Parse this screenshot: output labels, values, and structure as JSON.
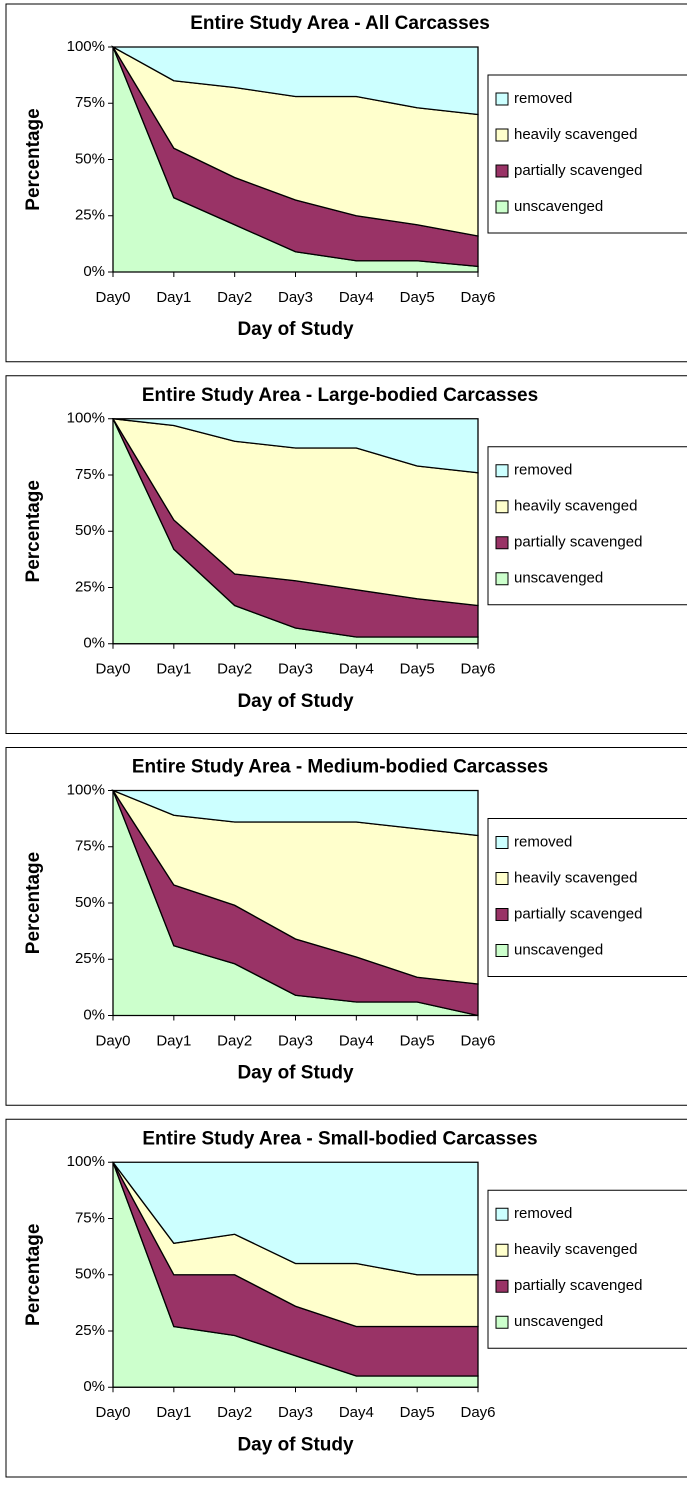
{
  "chart_data": [
    {
      "type": "area",
      "title": "Entire Study Area - All Carcasses",
      "xlabel": "Day of Study",
      "ylabel": "Percentage",
      "categories": [
        "Day0",
        "Day1",
        "Day2",
        "Day3",
        "Day4",
        "Day5",
        "Day6"
      ],
      "series": [
        {
          "name": "unscavenged",
          "color": "#ccffcc",
          "values": [
            100,
            33,
            21,
            9,
            5,
            5,
            2.5
          ]
        },
        {
          "name": "partially scavenged",
          "color": "#993366",
          "values": [
            0,
            22,
            21,
            23,
            20,
            16,
            13.5
          ]
        },
        {
          "name": "heavily scavenged",
          "color": "#ffffcc",
          "values": [
            0,
            30,
            40,
            46,
            53,
            52,
            54
          ]
        },
        {
          "name": "removed",
          "color": "#ccffff",
          "values": [
            0,
            15,
            18,
            22,
            22,
            27,
            30
          ]
        }
      ],
      "ylim": [
        0,
        100
      ],
      "yticks": [
        {
          "value": 0,
          "label": "0%"
        },
        {
          "value": 25,
          "label": "25%"
        },
        {
          "value": 50,
          "label": "50%"
        },
        {
          "value": 75,
          "label": "75%"
        },
        {
          "value": 100,
          "label": "100%"
        }
      ]
    },
    {
      "type": "area",
      "title": "Entire Study Area - Large-bodied Carcasses",
      "xlabel": "Day of Study",
      "ylabel": "Percentage",
      "categories": [
        "Day0",
        "Day1",
        "Day2",
        "Day3",
        "Day4",
        "Day5",
        "Day6"
      ],
      "series": [
        {
          "name": "unscavenged",
          "color": "#ccffcc",
          "values": [
            100,
            42,
            17,
            7,
            3,
            3,
            3
          ]
        },
        {
          "name": "partially scavenged",
          "color": "#993366",
          "values": [
            0,
            13,
            14,
            21,
            21,
            17,
            14
          ]
        },
        {
          "name": "heavily scavenged",
          "color": "#ffffcc",
          "values": [
            0,
            42,
            59,
            59,
            63,
            59,
            59
          ]
        },
        {
          "name": "removed",
          "color": "#ccffff",
          "values": [
            0,
            3,
            10,
            13,
            13,
            21,
            24
          ]
        }
      ],
      "ylim": [
        0,
        100
      ],
      "yticks": [
        {
          "value": 0,
          "label": "0%"
        },
        {
          "value": 25,
          "label": "25%"
        },
        {
          "value": 50,
          "label": "50%"
        },
        {
          "value": 75,
          "label": "75%"
        },
        {
          "value": 100,
          "label": "100%"
        }
      ]
    },
    {
      "type": "area",
      "title": "Entire Study Area - Medium-bodied Carcasses",
      "xlabel": "Day of Study",
      "ylabel": "Percentage",
      "categories": [
        "Day0",
        "Day1",
        "Day2",
        "Day3",
        "Day4",
        "Day5",
        "Day6"
      ],
      "series": [
        {
          "name": "unscavenged",
          "color": "#ccffcc",
          "values": [
            100,
            31,
            23,
            9,
            6,
            6,
            0
          ]
        },
        {
          "name": "partially scavenged",
          "color": "#993366",
          "values": [
            0,
            27,
            26,
            25,
            20,
            11,
            14
          ]
        },
        {
          "name": "heavily scavenged",
          "color": "#ffffcc",
          "values": [
            0,
            31,
            37,
            52,
            60,
            66,
            66
          ]
        },
        {
          "name": "removed",
          "color": "#ccffff",
          "values": [
            0,
            11,
            14,
            14,
            14,
            17,
            20
          ]
        }
      ],
      "ylim": [
        0,
        100
      ],
      "yticks": [
        {
          "value": 0,
          "label": "0%"
        },
        {
          "value": 25,
          "label": "25%"
        },
        {
          "value": 50,
          "label": "50%"
        },
        {
          "value": 75,
          "label": "75%"
        },
        {
          "value": 100,
          "label": "100%"
        }
      ]
    },
    {
      "type": "area",
      "title": "Entire Study Area - Small-bodied Carcasses",
      "xlabel": "Day of Study",
      "ylabel": "Percentage",
      "categories": [
        "Day0",
        "Day1",
        "Day2",
        "Day3",
        "Day4",
        "Day5",
        "Day6"
      ],
      "series": [
        {
          "name": "unscavenged",
          "color": "#ccffcc",
          "values": [
            100,
            27,
            23,
            14,
            5,
            5,
            5
          ]
        },
        {
          "name": "partially scavenged",
          "color": "#993366",
          "values": [
            0,
            23,
            27,
            22,
            22,
            22,
            22
          ]
        },
        {
          "name": "heavily scavenged",
          "color": "#ffffcc",
          "values": [
            0,
            14,
            18,
            19,
            28,
            23,
            23
          ]
        },
        {
          "name": "removed",
          "color": "#ccffff",
          "values": [
            0,
            36,
            32,
            45,
            45,
            50,
            50
          ]
        }
      ],
      "ylim": [
        0,
        100
      ],
      "yticks": [
        {
          "value": 0,
          "label": "0%"
        },
        {
          "value": 25,
          "label": "25%"
        },
        {
          "value": 50,
          "label": "50%"
        },
        {
          "value": 75,
          "label": "75%"
        },
        {
          "value": 100,
          "label": "100%"
        }
      ]
    }
  ]
}
